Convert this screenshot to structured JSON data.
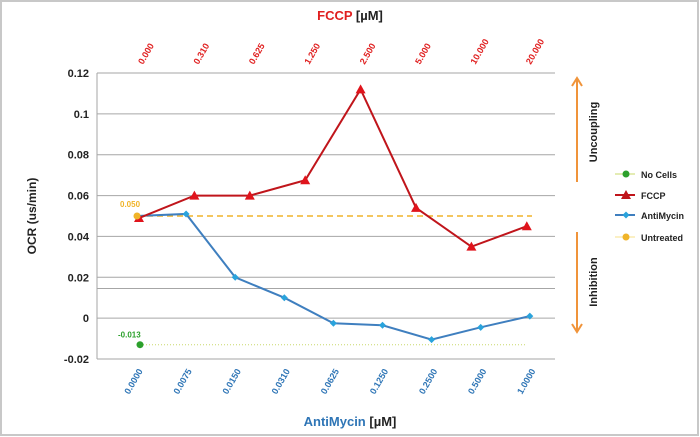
{
  "chart_data": {
    "type": "line",
    "ylabel": "OCR (us/min)",
    "ylim": [
      -0.02,
      0.12
    ],
    "yticks": [
      -0.02,
      0,
      0.02,
      0.04,
      0.06,
      0.08,
      0.1,
      0.12
    ],
    "ytick_labels": [
      "-0.02",
      "0",
      "0.02",
      "0.04",
      "0.06",
      "0.08",
      "0.1",
      "0.12"
    ],
    "grid": true,
    "bottom_axis": {
      "label_name": "AntiMycin",
      "label_unit": "[µM]",
      "color": "#2e75b6",
      "categories": [
        "0.0000",
        "0.0075",
        "0.0150",
        "0.0310",
        "0.0625",
        "0.1250",
        "0.2500",
        "0.5000",
        "1.0000"
      ]
    },
    "top_axis": {
      "label_name": "FCCP",
      "label_unit": "[µM]",
      "color": "#e02020",
      "categories": [
        "0.000",
        "0.310",
        "0.625",
        "1.250",
        "2.500",
        "5.000",
        "10.000",
        "20.000"
      ]
    },
    "series": [
      {
        "name": "No Cells",
        "axis": "reference",
        "values": [
          -0.013
        ],
        "color": "#2ca02c",
        "style": "dotted",
        "annotation": "-0.013"
      },
      {
        "name": "FCCP",
        "axis": "top",
        "values": [
          0.049,
          0.06,
          0.06,
          0.0675,
          0.112,
          0.054,
          0.035,
          0.045
        ],
        "color": "#c0151b",
        "marker": "triangle"
      },
      {
        "name": "AntiMycin",
        "axis": "bottom",
        "values": [
          0.05,
          0.051,
          0.02,
          0.01,
          -0.0025,
          -0.0035,
          -0.0105,
          -0.0045,
          0.001
        ],
        "color": "#3f7fbf",
        "marker": "diamond"
      },
      {
        "name": "Untreated",
        "axis": "reference",
        "values": [
          0.05
        ],
        "color": "#f0b429",
        "style": "dashed",
        "annotation": "0.050"
      }
    ],
    "legend_position": "right",
    "annotations": {
      "upper": "Uncoupling",
      "lower": "Inhibition"
    }
  }
}
